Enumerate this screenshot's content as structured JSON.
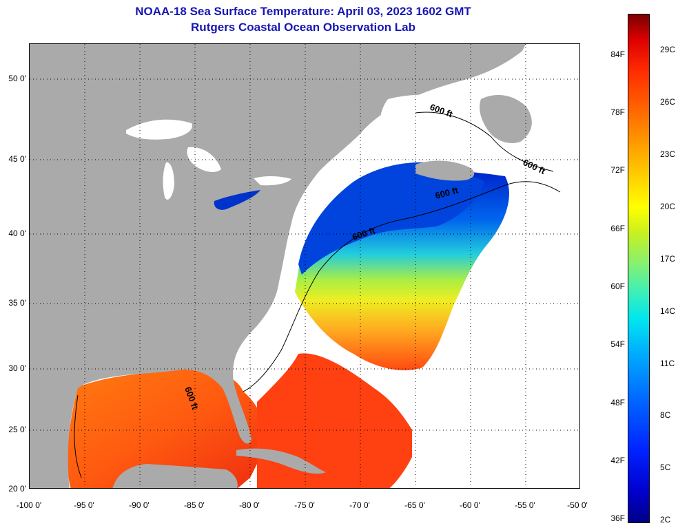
{
  "title": {
    "line1": "NOAA-18 Sea Surface Temperature:  April 03, 2023 1602 GMT",
    "line2": "Rutgers Coastal Ocean Observation Lab"
  },
  "map": {
    "lon_ticks": [
      "-100 0'",
      "-95 0'",
      "-90 0'",
      "-85 0'",
      "-80 0'",
      "-75 0'",
      "-70 0'",
      "-65 0'",
      "-60 0'",
      "-55 0'",
      "-50 0'"
    ],
    "lat_ticks": [
      "50 0'",
      "45 0'",
      "40 0'",
      "35 0'",
      "30 0'",
      "25 0'",
      "20 0'"
    ],
    "contour_labels": [
      "600 ft",
      "600 ft",
      "600 ft",
      "600 ft",
      "600 ft"
    ],
    "colors": {
      "land": "#aaaaaa",
      "no_data": "#ffffff",
      "graticule": "#000000"
    }
  },
  "colorbar": {
    "f_labels": [
      "84F",
      "78F",
      "72F",
      "66F",
      "60F",
      "54F",
      "48F",
      "42F",
      "36F"
    ],
    "c_labels": [
      "29C",
      "26C",
      "23C",
      "20C",
      "17C",
      "14C",
      "11C",
      "8C",
      "5C",
      "2C"
    ],
    "min_color": "#000088",
    "max_color": "#7a0000"
  }
}
